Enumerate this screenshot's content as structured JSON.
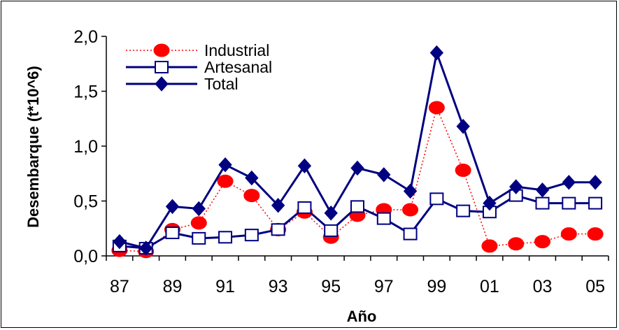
{
  "chart_data": {
    "type": "line",
    "xlabel": "Año",
    "ylabel": "Desembarque (t*10^6)",
    "x": [
      "87",
      "88",
      "89",
      "90",
      "91",
      "92",
      "93",
      "94",
      "95",
      "96",
      "97",
      "98",
      "99",
      "00",
      "01",
      "02",
      "03",
      "04",
      "05"
    ],
    "x_tick_labels": [
      "87",
      "89",
      "91",
      "93",
      "95",
      "97",
      "99",
      "01",
      "03",
      "05"
    ],
    "y_tick_labels": [
      "0,0",
      "0,5",
      "1,0",
      "1,5",
      "2,0"
    ],
    "ylim": [
      0,
      2.0
    ],
    "grid": false,
    "legend_position": "top-left",
    "series": [
      {
        "name": "Industrial",
        "color": "#ff0000",
        "line_style": "dotted",
        "marker": "circle",
        "values": [
          0.05,
          0.04,
          0.24,
          0.3,
          0.68,
          0.55,
          0.24,
          0.4,
          0.17,
          0.37,
          0.42,
          0.42,
          1.35,
          0.78,
          0.09,
          0.11,
          0.13,
          0.2,
          0.2
        ]
      },
      {
        "name": "Artesanal",
        "color": "#000080",
        "line_style": "solid",
        "marker": "square-open",
        "values": [
          0.09,
          0.07,
          0.21,
          0.16,
          0.17,
          0.19,
          0.24,
          0.44,
          0.23,
          0.45,
          0.34,
          0.2,
          0.52,
          0.41,
          0.4,
          0.55,
          0.48,
          0.48,
          0.48
        ]
      },
      {
        "name": "Total",
        "color": "#000080",
        "line_style": "solid",
        "marker": "diamond",
        "values": [
          0.13,
          0.07,
          0.45,
          0.43,
          0.83,
          0.71,
          0.46,
          0.82,
          0.39,
          0.8,
          0.74,
          0.59,
          1.85,
          1.18,
          0.48,
          0.63,
          0.6,
          0.67,
          0.67
        ]
      }
    ]
  }
}
